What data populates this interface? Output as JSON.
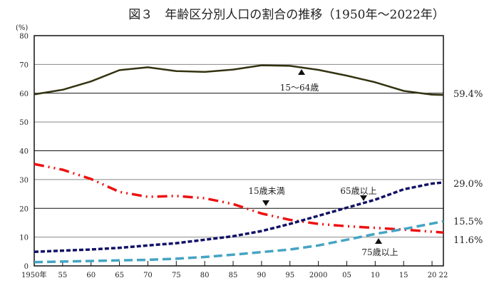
{
  "chart_data": {
    "type": "line",
    "title": "図３　年齢区分別人口の割合の推移（1950年～2022年）",
    "ylabel": "(%)",
    "ylim": [
      0,
      80
    ],
    "yticks": [
      0,
      10,
      20,
      30,
      40,
      50,
      60,
      70,
      80
    ],
    "xlim": [
      1950,
      2022
    ],
    "xtick_values": [
      1950,
      1955,
      1960,
      1965,
      1970,
      1975,
      1980,
      1985,
      1990,
      1995,
      2000,
      2005,
      2010,
      2015,
      2020,
      2022
    ],
    "xtick_labels": [
      "1950年",
      "55",
      "60",
      "65",
      "70",
      "75",
      "80",
      "85",
      "90",
      "95",
      "2000",
      "05",
      "10",
      "15",
      "20",
      "22"
    ],
    "grid": true,
    "x": [
      1950,
      1955,
      1960,
      1965,
      1970,
      1975,
      1980,
      1985,
      1990,
      1995,
      2000,
      2005,
      2010,
      2015,
      2020,
      2022
    ],
    "series": [
      {
        "name": "15～64歳",
        "color": "#333311",
        "style": "solid",
        "end_label": "59.4%",
        "values": [
          59.6,
          61.2,
          64.1,
          68.0,
          69.0,
          67.7,
          67.4,
          68.2,
          69.7,
          69.5,
          68.1,
          66.1,
          63.8,
          60.8,
          59.5,
          59.4
        ]
      },
      {
        "name": "15歳未満",
        "color": "#ee1111",
        "style": "dashdot",
        "end_label": "11.6%",
        "values": [
          35.4,
          33.4,
          30.2,
          25.7,
          24.0,
          24.3,
          23.5,
          21.5,
          18.2,
          16.0,
          14.6,
          13.8,
          13.2,
          12.6,
          11.9,
          11.6
        ]
      },
      {
        "name": "65歳以上",
        "color": "#111166",
        "style": "dash",
        "end_label": "29.0%",
        "values": [
          4.9,
          5.3,
          5.7,
          6.3,
          7.1,
          7.9,
          9.1,
          10.3,
          12.1,
          14.6,
          17.4,
          20.2,
          23.0,
          26.6,
          28.6,
          29.0
        ]
      },
      {
        "name": "75歳以上",
        "color": "#44a4c4",
        "style": "longdash",
        "end_label": "15.5%",
        "values": [
          1.3,
          1.5,
          1.7,
          1.9,
          2.1,
          2.5,
          3.1,
          3.9,
          4.8,
          5.7,
          7.1,
          9.1,
          11.1,
          12.8,
          14.7,
          15.5
        ]
      }
    ]
  }
}
